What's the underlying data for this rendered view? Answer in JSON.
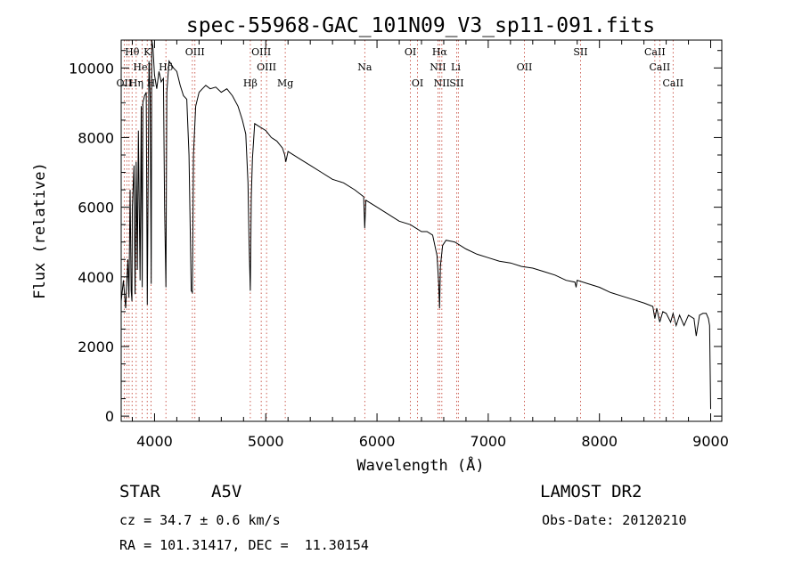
{
  "chart_data": {
    "type": "line",
    "title": "spec-55968-GAC_101N09_V3_sp11-091.fits",
    "xlabel": "Wavelength (Å)",
    "ylabel": "Flux (relative)",
    "xlim": [
      3700,
      9100
    ],
    "ylim": [
      -150,
      10800
    ],
    "grid": false,
    "x_ticks": [
      4000,
      5000,
      6000,
      7000,
      8000,
      9000
    ],
    "y_ticks": [
      0,
      2000,
      4000,
      6000,
      8000,
      10000
    ],
    "series": [
      {
        "x": [
          3700,
          3720,
          3740,
          3760,
          3770,
          3780,
          3790,
          3797,
          3800,
          3815,
          3825,
          3835,
          3845,
          3855,
          3870,
          3880,
          3889,
          3895,
          3910,
          3925,
          3935,
          3950,
          3960,
          3970,
          3975,
          3985,
          4000,
          4020,
          4040,
          4060,
          4080,
          4090,
          4102,
          4110,
          4130,
          4150,
          4170,
          4200,
          4230,
          4260,
          4290,
          4310,
          4330,
          4340,
          4350,
          4370,
          4400,
          4430,
          4460,
          4500,
          4550,
          4600,
          4650,
          4700,
          4750,
          4790,
          4820,
          4840,
          4850,
          4861,
          4870,
          4880,
          4900,
          4950,
          5000,
          5050,
          5100,
          5150,
          5170,
          5180,
          5200,
          5300,
          5400,
          5500,
          5600,
          5700,
          5800,
          5880,
          5890,
          5900,
          6000,
          6100,
          6200,
          6300,
          6400,
          6450,
          6500,
          6540,
          6555,
          6563,
          6570,
          6590,
          6620,
          6700,
          6800,
          6900,
          7000,
          7100,
          7200,
          7300,
          7400,
          7500,
          7600,
          7700,
          7780,
          7790,
          7800,
          7900,
          8000,
          8100,
          8200,
          8300,
          8400,
          8480,
          8498,
          8515,
          8542,
          8570,
          8600,
          8640,
          8662,
          8690,
          8720,
          8760,
          8800,
          8850,
          8870,
          8900,
          8930,
          8960,
          8980,
          8990,
          9000
        ],
        "y": [
          3300,
          3900,
          3100,
          4500,
          3400,
          6500,
          3600,
          3300,
          6000,
          7200,
          3500,
          7300,
          4200,
          8200,
          3900,
          8900,
          3700,
          9000,
          9200,
          9300,
          3200,
          10200,
          9200,
          3800,
          10800,
          10600,
          9800,
          9400,
          9900,
          9600,
          9700,
          6000,
          3700,
          9300,
          10200,
          10100,
          10000,
          9900,
          9500,
          9200,
          9100,
          7500,
          3600,
          3550,
          7500,
          8900,
          9300,
          9400,
          9500,
          9400,
          9450,
          9300,
          9400,
          9200,
          8900,
          8500,
          8100,
          6700,
          5000,
          3600,
          6300,
          7400,
          8400,
          8300,
          8200,
          8000,
          7900,
          7700,
          7500,
          7300,
          7600,
          7400,
          7200,
          7000,
          6800,
          6700,
          6500,
          6300,
          5400,
          6200,
          6000,
          5800,
          5600,
          5500,
          5300,
          5300,
          5200,
          4600,
          3800,
          3100,
          4300,
          4900,
          5050,
          5000,
          4800,
          4650,
          4550,
          4450,
          4400,
          4300,
          4250,
          4150,
          4050,
          3900,
          3850,
          3700,
          3900,
          3800,
          3700,
          3550,
          3450,
          3350,
          3250,
          3150,
          2800,
          3100,
          2700,
          3000,
          2950,
          2700,
          2950,
          2600,
          2900,
          2600,
          2900,
          2800,
          2300,
          2900,
          2950,
          2950,
          2800,
          2600,
          200
        ]
      }
    ],
    "line_markers": [
      {
        "label": "Hθ",
        "x": 3798,
        "row": 1
      },
      {
        "label": "K",
        "x": 3934,
        "row": 1
      },
      {
        "label": "OIII",
        "x": 4363,
        "row": 1
      },
      {
        "label": "OIII",
        "x": 4959,
        "row": 1
      },
      {
        "label": "OI",
        "x": 6300,
        "row": 1
      },
      {
        "label": "Hα",
        "x": 6563,
        "row": 1
      },
      {
        "label": "SII",
        "x": 7830,
        "row": 1
      },
      {
        "label": "CaII",
        "x": 8498,
        "row": 1
      },
      {
        "label": "HeI",
        "x": 3889,
        "row": 2
      },
      {
        "label": "Hδ",
        "x": 4102,
        "row": 2
      },
      {
        "label": "OIII",
        "x": 5007,
        "row": 2
      },
      {
        "label": "Na",
        "x": 5890,
        "row": 2
      },
      {
        "label": "NII",
        "x": 6548,
        "row": 2
      },
      {
        "label": "Li",
        "x": 6708,
        "row": 2
      },
      {
        "label": "OII",
        "x": 7325,
        "row": 2
      },
      {
        "label": "CaII",
        "x": 8542,
        "row": 2
      },
      {
        "label": "OII",
        "x": 3727,
        "row": 3
      },
      {
        "label": "Hη",
        "x": 3835,
        "row": 3
      },
      {
        "label": "H",
        "x": 3968,
        "row": 3
      },
      {
        "label": "Hβ",
        "x": 4861,
        "row": 3
      },
      {
        "label": "Mg",
        "x": 5175,
        "row": 3
      },
      {
        "label": "OI",
        "x": 6364,
        "row": 3
      },
      {
        "label": "NII",
        "x": 6583,
        "row": 3
      },
      {
        "label": "SII",
        "x": 6716,
        "row": 3
      },
      {
        "label": "CaII",
        "x": 8662,
        "row": 3
      }
    ],
    "marker_lines_x": [
      3727,
      3750,
      3771,
      3798,
      3835,
      3889,
      3934,
      3968,
      4102,
      4340,
      4363,
      4861,
      4959,
      5007,
      5175,
      5890,
      6300,
      6364,
      6548,
      6563,
      6583,
      6716,
      6731,
      7325,
      7830,
      8498,
      8542,
      8662
    ]
  },
  "info": {
    "object_type": "STAR",
    "subclass": "A5V",
    "survey": "LAMOST DR2",
    "cz": "cz = 34.7 ± 0.6 km/s",
    "obs_date": "Obs-Date: 20120210",
    "coords": "RA = 101.31417, DEC =  11.30154"
  }
}
